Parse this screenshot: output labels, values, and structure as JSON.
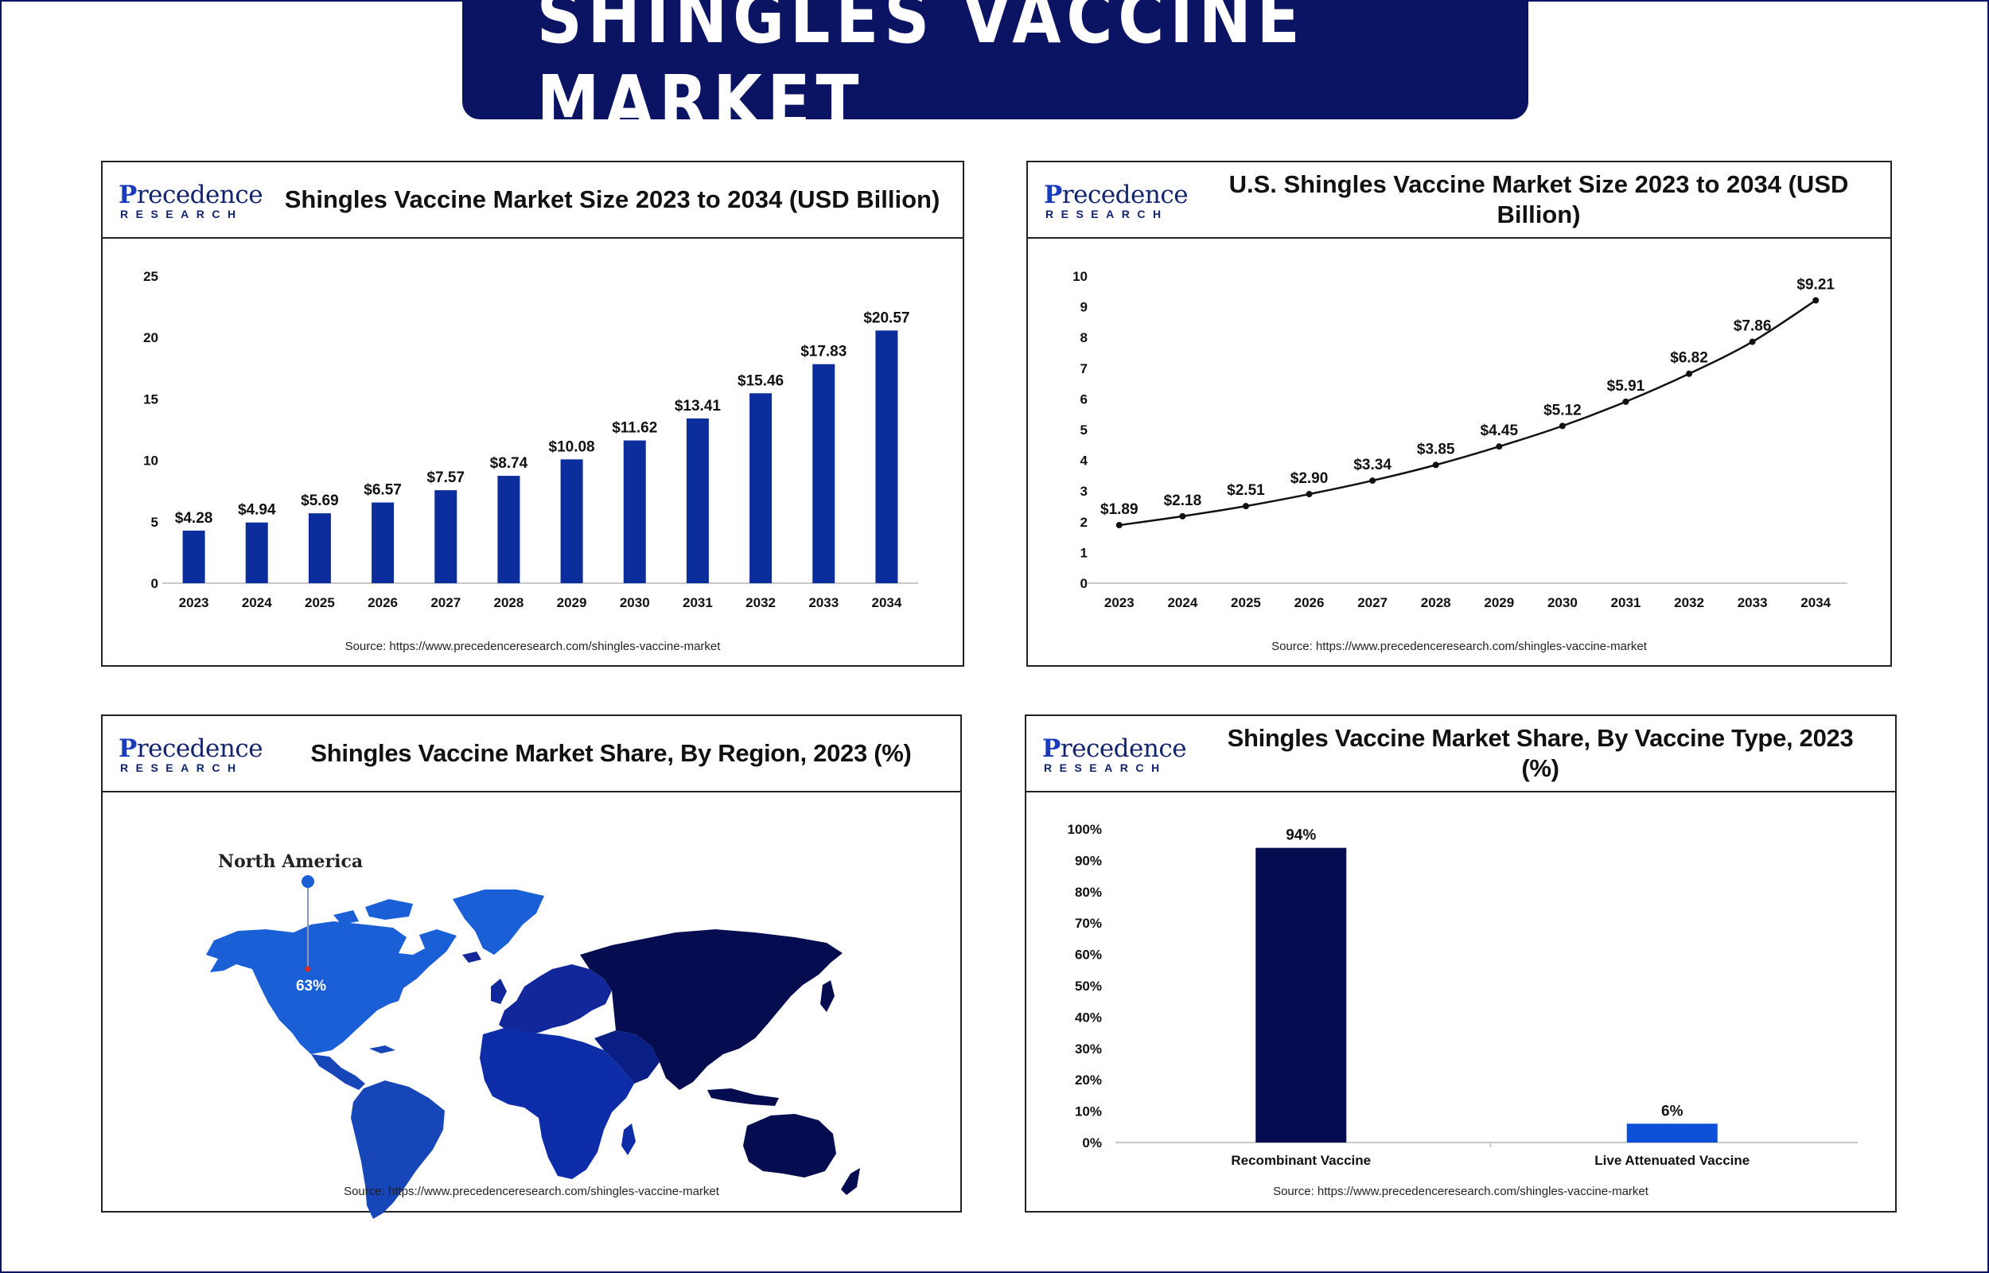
{
  "banner": {
    "title": "SHINGLES VACCINE MARKET"
  },
  "logo": {
    "top": "recedence",
    "initial": "P",
    "bottom": "RESEARCH"
  },
  "panels": [
    {
      "title": "Shingles Vaccine Market Size 2023 to 2034 (USD Billion)",
      "source": "Source: https://www.precedenceresearch.com/shingles-vaccine-market"
    },
    {
      "title": "U.S. Shingles Vaccine Market Size 2023 to 2034 (USD Billion)",
      "source": "Source: https://www.precedenceresearch.com/shingles-vaccine-market"
    },
    {
      "title": "Shingles Vaccine Market Share, By Region, 2023 (%)",
      "source": "Source: https://www.precedenceresearch.com/shingles-vaccine-market"
    },
    {
      "title": "Shingles Vaccine Market Share, By Vaccine Type, 2023 (%)",
      "source": "Source: https://www.precedenceresearch.com/shingles-vaccine-market"
    }
  ],
  "chart_data": [
    {
      "type": "bar",
      "title": "Shingles Vaccine Market Size 2023 to 2034 (USD Billion)",
      "categories": [
        "2023",
        "2024",
        "2025",
        "2026",
        "2027",
        "2028",
        "2029",
        "2030",
        "2031",
        "2032",
        "2033",
        "2034"
      ],
      "values": [
        4.28,
        4.94,
        5.69,
        6.57,
        7.57,
        8.74,
        10.08,
        11.62,
        13.41,
        15.46,
        17.83,
        20.57
      ],
      "labels": [
        "$4.28",
        "$4.94",
        "$5.69",
        "$6.57",
        "$7.57",
        "$8.74",
        "$10.08",
        "$11.62",
        "$13.41",
        "$15.46",
        "$17.83",
        "$20.57"
      ],
      "yticks": [
        0,
        5,
        10,
        15,
        20,
        25
      ],
      "ylim": [
        0,
        25
      ],
      "grid": false,
      "color": "#0b2e9c"
    },
    {
      "type": "line",
      "title": "U.S. Shingles Vaccine Market Size 2023 to 2034 (USD Billion)",
      "categories": [
        "2023",
        "2024",
        "2025",
        "2026",
        "2027",
        "2028",
        "2029",
        "2030",
        "2031",
        "2032",
        "2033",
        "2034"
      ],
      "values": [
        1.89,
        2.18,
        2.51,
        2.9,
        3.34,
        3.85,
        4.45,
        5.12,
        5.91,
        6.82,
        7.86,
        9.21
      ],
      "labels": [
        "$1.89",
        "$2.18",
        "$2.51",
        "$2.90",
        "$3.34",
        "$3.85",
        "$4.45",
        "$5.12",
        "$5.91",
        "$6.82",
        "$7.86",
        "$9.21"
      ],
      "yticks": [
        0,
        1,
        2,
        3,
        4,
        5,
        6,
        7,
        8,
        9,
        10
      ],
      "ylim": [
        0,
        10
      ],
      "grid": false,
      "color": "#111111"
    },
    {
      "type": "map",
      "title": "Shingles Vaccine Market Share, By Region, 2023 (%)",
      "highlight": {
        "region": "North America",
        "value_label": "63%",
        "value": 63
      },
      "colors": {
        "north_america": "#1a5fd6",
        "latin_america": "#1746b8",
        "europe": "#12289a",
        "africa": "#0d2ca8",
        "asia_pacific": "#050c4f",
        "middle_east": "#0a1f86"
      }
    },
    {
      "type": "bar",
      "title": "Shingles Vaccine Market Share, By Vaccine Type, 2023 (%)",
      "categories": [
        "Recombinant Vaccine",
        "Live Attenuated Vaccine"
      ],
      "values": [
        94,
        6
      ],
      "labels": [
        "94%",
        "6%"
      ],
      "colors": [
        "#050c4f",
        "#0b50d6"
      ],
      "yticks": [
        "0%",
        "10%",
        "20%",
        "30%",
        "40%",
        "50%",
        "60%",
        "70%",
        "80%",
        "90%",
        "100%"
      ],
      "ylim": [
        0,
        100
      ],
      "grid": false
    }
  ]
}
